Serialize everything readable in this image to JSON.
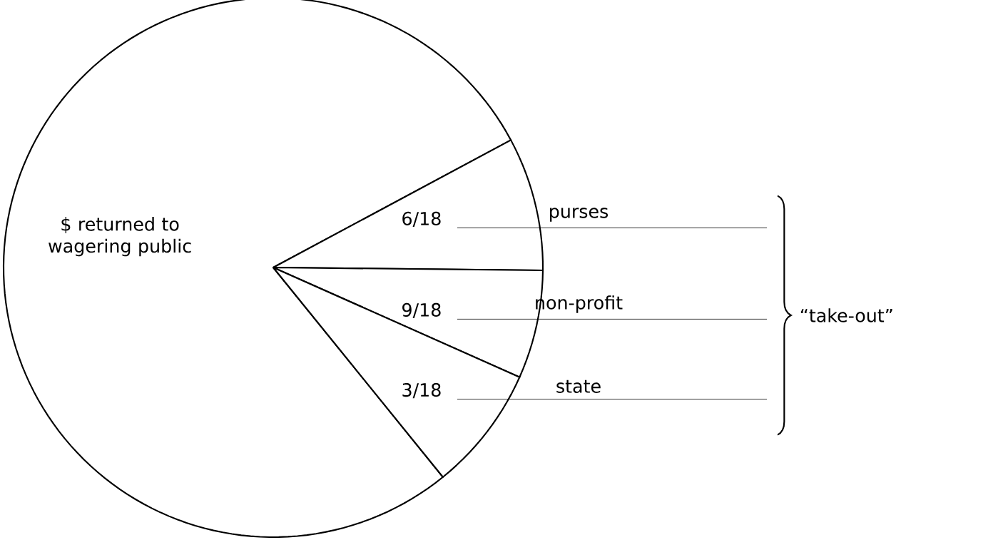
{
  "chart_data": {
    "type": "pie",
    "categories": [
      "$ returned to wagering public",
      "purses",
      "non-profit",
      "state"
    ],
    "values": [
      78,
      8,
      6.5,
      7.5
    ],
    "colors": [
      "#ffffff",
      "#ffffff",
      "#ffffff",
      "#ffffff"
    ],
    "value_labels": [
      null,
      "6/18",
      "9/18",
      "3/18"
    ],
    "annotations": [
      "“take-out”"
    ]
  }
}
